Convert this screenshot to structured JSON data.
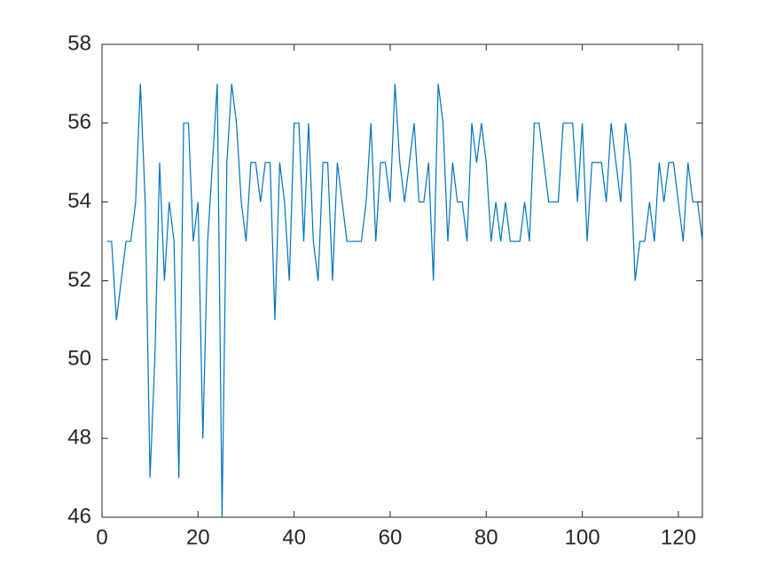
{
  "chart_data": {
    "type": "line",
    "x": [
      1,
      2,
      3,
      4,
      5,
      6,
      7,
      8,
      9,
      10,
      11,
      12,
      13,
      14,
      15,
      16,
      17,
      18,
      19,
      20,
      21,
      22,
      23,
      24,
      25,
      26,
      27,
      28,
      29,
      30,
      31,
      32,
      33,
      34,
      35,
      36,
      37,
      38,
      39,
      40,
      41,
      42,
      43,
      44,
      45,
      46,
      47,
      48,
      49,
      50,
      51,
      52,
      53,
      54,
      55,
      56,
      57,
      58,
      59,
      60,
      61,
      62,
      63,
      64,
      65,
      66,
      67,
      68,
      69,
      70,
      71,
      72,
      73,
      74,
      75,
      76,
      77,
      78,
      79,
      80,
      81,
      82,
      83,
      84,
      85,
      86,
      87,
      88,
      89,
      90,
      91,
      92,
      93,
      94,
      95,
      96,
      97,
      98,
      99,
      100,
      101,
      102,
      103,
      104,
      105,
      106,
      107,
      108,
      109,
      110,
      111,
      112,
      113,
      114,
      115,
      116,
      117,
      118,
      119,
      120,
      121,
      122,
      123,
      124,
      125
    ],
    "series": [
      {
        "color": "#0072bd",
        "values": [
          53,
          53,
          51,
          52,
          53,
          53,
          54,
          57,
          54,
          47,
          50,
          55,
          52,
          54,
          53,
          47,
          56,
          56,
          53,
          54,
          48,
          53,
          55,
          57,
          46,
          55,
          57,
          56,
          54,
          53,
          55,
          55,
          54,
          55,
          55,
          51,
          55,
          54,
          52,
          56,
          56,
          53,
          56,
          53,
          52,
          55,
          55,
          52,
          55,
          54,
          53,
          53,
          53,
          53,
          54,
          56,
          53,
          55,
          55,
          54,
          57,
          55,
          54,
          55,
          56,
          54,
          54,
          55,
          52,
          57,
          56,
          53,
          55,
          54,
          54,
          53,
          56,
          55,
          56,
          55,
          53,
          54,
          53,
          54,
          53,
          53,
          53,
          54,
          53,
          56,
          56,
          55,
          54,
          54,
          54,
          56,
          56,
          56,
          54,
          56,
          53,
          55,
          55,
          55,
          54,
          56,
          55,
          54,
          56,
          55,
          52,
          53,
          53,
          54,
          53,
          55,
          54,
          55,
          55,
          54,
          53,
          55,
          54,
          54,
          53
        ]
      }
    ],
    "xlim": [
      0,
      125
    ],
    "xticks": [
      0,
      20,
      40,
      60,
      80,
      100,
      120
    ],
    "ylim": [
      46,
      58
    ],
    "yticks": [
      46,
      48,
      50,
      52,
      54,
      56,
      58
    ]
  }
}
